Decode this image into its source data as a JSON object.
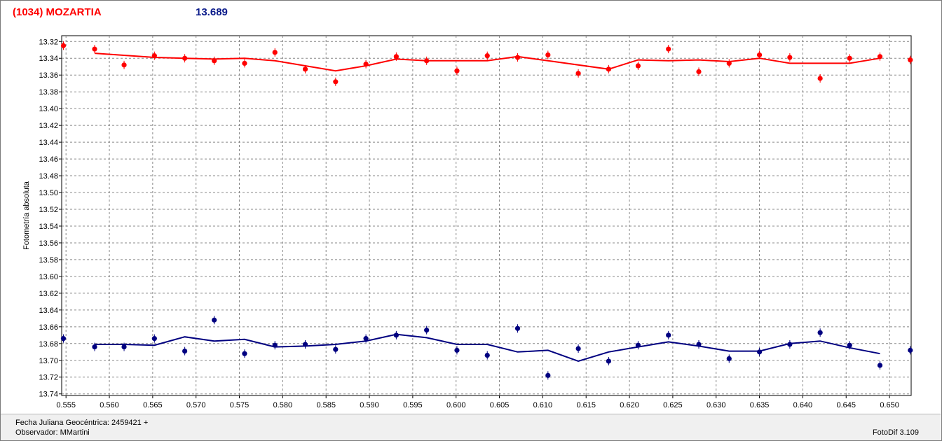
{
  "header": {
    "object": "(1034) MOZARTIA",
    "value": "13.689"
  },
  "footer": {
    "date_line": "Fecha Juliana Geocéntrica: 2459421 +",
    "observer_line": "Observador: MMartini",
    "software": "FotoDif 3.109"
  },
  "chart_data": {
    "type": "scatter",
    "ylabel": "Fotometría absoluta",
    "xlim": [
      0.5545,
      0.6525
    ],
    "ylim": [
      13.3131,
      13.7419
    ],
    "y_reversed": true,
    "grid": true,
    "grid_style": "dashed",
    "x_ticks": [
      "0.555",
      "0.560",
      "0.565",
      "0.570",
      "0.575",
      "0.580",
      "0.585",
      "0.590",
      "0.595",
      "0.600",
      "0.605",
      "0.610",
      "0.615",
      "0.620",
      "0.625",
      "0.630",
      "0.635",
      "0.640",
      "0.645",
      "0.650"
    ],
    "y_ticks": [
      "13.32",
      "13.34",
      "13.36",
      "13.38",
      "13.40",
      "13.42",
      "13.44",
      "13.46",
      "13.48",
      "13.50",
      "13.52",
      "13.54",
      "13.56",
      "13.58",
      "13.60",
      "13.62",
      "13.64",
      "13.66",
      "13.68",
      "13.70",
      "13.72",
      "13.74"
    ],
    "series": [
      {
        "color": "#ff0000",
        "points": [
          [
            0.5547,
            13.325
          ],
          [
            0.5583,
            13.329
          ],
          [
            0.5617,
            13.348
          ],
          [
            0.5652,
            13.337
          ],
          [
            0.5687,
            13.34
          ],
          [
            0.5721,
            13.343
          ],
          [
            0.5756,
            13.346
          ],
          [
            0.5791,
            13.333
          ],
          [
            0.5826,
            13.353
          ],
          [
            0.5861,
            13.368
          ],
          [
            0.5896,
            13.347
          ],
          [
            0.5931,
            13.338
          ],
          [
            0.5966,
            13.343
          ],
          [
            0.6001,
            13.355
          ],
          [
            0.6036,
            13.337
          ],
          [
            0.6071,
            13.339
          ],
          [
            0.6106,
            13.336
          ],
          [
            0.6141,
            13.358
          ],
          [
            0.6176,
            13.353
          ],
          [
            0.621,
            13.349
          ],
          [
            0.6245,
            13.329
          ],
          [
            0.628,
            13.356
          ],
          [
            0.6315,
            13.346
          ],
          [
            0.635,
            13.336
          ],
          [
            0.6385,
            13.339
          ],
          [
            0.642,
            13.364
          ],
          [
            0.6454,
            13.34
          ],
          [
            0.6489,
            13.338
          ],
          [
            0.6524,
            13.342
          ]
        ],
        "fit": [
          [
            0.5583,
            13.334
          ],
          [
            0.5652,
            13.339
          ],
          [
            0.5721,
            13.341
          ],
          [
            0.5756,
            13.34
          ],
          [
            0.5791,
            13.343
          ],
          [
            0.5861,
            13.355
          ],
          [
            0.5896,
            13.349
          ],
          [
            0.5931,
            13.341
          ],
          [
            0.5966,
            13.343
          ],
          [
            0.6036,
            13.343
          ],
          [
            0.6071,
            13.338
          ],
          [
            0.6106,
            13.343
          ],
          [
            0.6176,
            13.353
          ],
          [
            0.621,
            13.342
          ],
          [
            0.6245,
            13.343
          ],
          [
            0.628,
            13.342
          ],
          [
            0.6315,
            13.344
          ],
          [
            0.635,
            13.34
          ],
          [
            0.6385,
            13.346
          ],
          [
            0.6454,
            13.346
          ],
          [
            0.6489,
            13.34
          ]
        ]
      },
      {
        "color": "#000080",
        "points": [
          [
            0.5547,
            13.674
          ],
          [
            0.5583,
            13.684
          ],
          [
            0.5617,
            13.684
          ],
          [
            0.5652,
            13.674
          ],
          [
            0.5687,
            13.689
          ],
          [
            0.5721,
            13.652
          ],
          [
            0.5756,
            13.692
          ],
          [
            0.5791,
            13.682
          ],
          [
            0.5826,
            13.681
          ],
          [
            0.5861,
            13.687
          ],
          [
            0.5896,
            13.674
          ],
          [
            0.5931,
            13.67
          ],
          [
            0.5966,
            13.664
          ],
          [
            0.6001,
            13.688
          ],
          [
            0.6036,
            13.694
          ],
          [
            0.6071,
            13.662
          ],
          [
            0.6106,
            13.718
          ],
          [
            0.6141,
            13.686
          ],
          [
            0.6176,
            13.701
          ],
          [
            0.621,
            13.682
          ],
          [
            0.6245,
            13.67
          ],
          [
            0.628,
            13.681
          ],
          [
            0.6315,
            13.698
          ],
          [
            0.635,
            13.69
          ],
          [
            0.6385,
            13.681
          ],
          [
            0.642,
            13.667
          ],
          [
            0.6454,
            13.682
          ],
          [
            0.6489,
            13.706
          ],
          [
            0.6524,
            13.688
          ]
        ],
        "fit": [
          [
            0.5583,
            13.681
          ],
          [
            0.5617,
            13.681
          ],
          [
            0.5652,
            13.682
          ],
          [
            0.5687,
            13.672
          ],
          [
            0.5721,
            13.677
          ],
          [
            0.5756,
            13.675
          ],
          [
            0.5791,
            13.684
          ],
          [
            0.5826,
            13.683
          ],
          [
            0.5861,
            13.681
          ],
          [
            0.5896,
            13.677
          ],
          [
            0.5931,
            13.669
          ],
          [
            0.5966,
            13.673
          ],
          [
            0.6001,
            13.681
          ],
          [
            0.6036,
            13.681
          ],
          [
            0.6071,
            13.69
          ],
          [
            0.6106,
            13.688
          ],
          [
            0.6141,
            13.701
          ],
          [
            0.6176,
            13.69
          ],
          [
            0.621,
            13.684
          ],
          [
            0.6245,
            13.678
          ],
          [
            0.628,
            13.683
          ],
          [
            0.6315,
            13.689
          ],
          [
            0.635,
            13.689
          ],
          [
            0.6385,
            13.68
          ],
          [
            0.642,
            13.677
          ],
          [
            0.6454,
            13.685
          ],
          [
            0.6489,
            13.692
          ]
        ]
      }
    ]
  }
}
